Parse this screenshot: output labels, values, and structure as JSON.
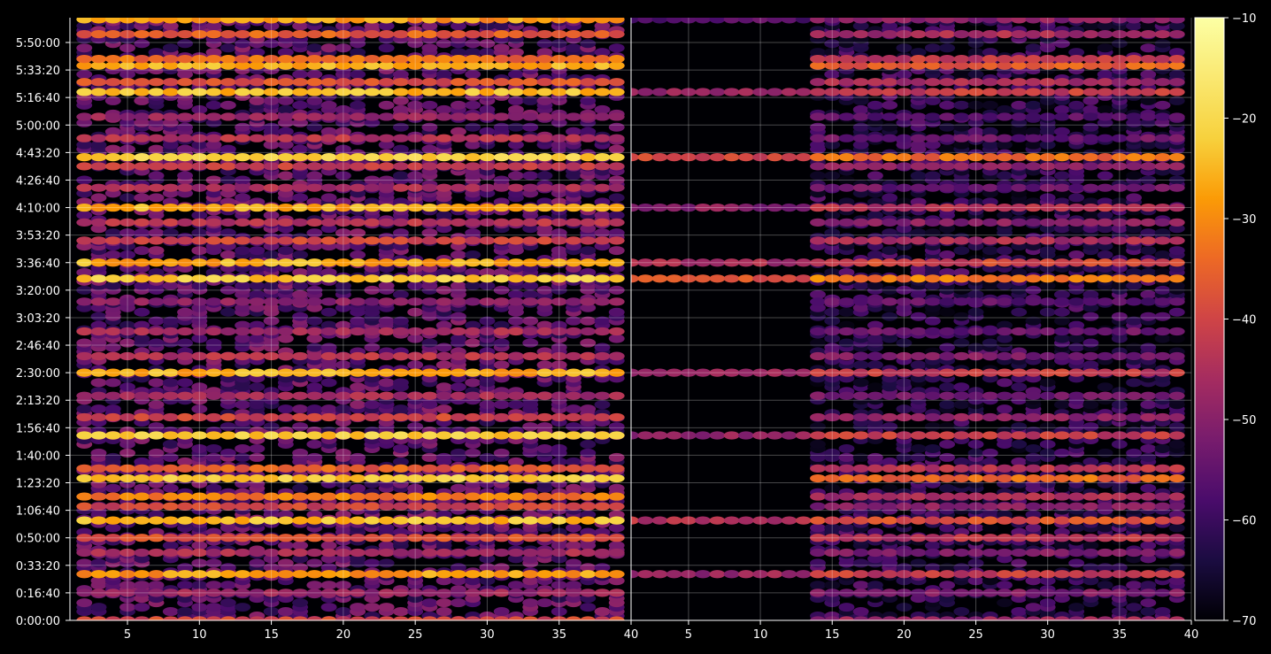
{
  "chart_data": {
    "type": "heatmap",
    "title": "",
    "xlabel": "",
    "ylabel": "",
    "colormap": "inferno",
    "background_color": "#000000",
    "grid": true,
    "color_range": [
      -70,
      -10
    ],
    "colorbar": {
      "placement": "right",
      "ticks": [
        "−70",
        "−60",
        "−50",
        "−40",
        "−30",
        "−20",
        "−10"
      ]
    },
    "y_range_seconds": [
      0,
      21900
    ],
    "y_ticks": [
      "0:00:00",
      "0:16:40",
      "0:33:20",
      "0:50:00",
      "1:06:40",
      "1:23:20",
      "1:40:00",
      "1:56:40",
      "2:13:20",
      "2:30:00",
      "2:46:40",
      "3:03:20",
      "3:20:00",
      "3:36:40",
      "3:53:20",
      "4:10:00",
      "4:26:40",
      "4:43:20",
      "5:00:00",
      "5:16:40",
      "5:33:20",
      "5:50:00"
    ],
    "panels": [
      {
        "name": "left",
        "x_range": [
          1,
          40
        ],
        "x_ticks": [
          "5",
          "10",
          "15",
          "20",
          "25",
          "30",
          "35",
          "40"
        ],
        "x_start": 2,
        "x_end": 39,
        "noise_level": -56,
        "bands": [
          {
            "time": "0:00:00",
            "level": -40
          },
          {
            "time": "0:16:40",
            "level": -48
          },
          {
            "time": "0:28:00",
            "level": -28
          },
          {
            "time": "0:41:00",
            "level": -46
          },
          {
            "time": "0:50:00",
            "level": -38
          },
          {
            "time": "1:00:30",
            "level": -24
          },
          {
            "time": "1:09:00",
            "level": -40
          },
          {
            "time": "1:15:00",
            "level": -32
          },
          {
            "time": "1:26:00",
            "level": -22
          },
          {
            "time": "1:32:00",
            "level": -36
          },
          {
            "time": "1:52:00",
            "level": -22
          },
          {
            "time": "2:03:00",
            "level": -40
          },
          {
            "time": "2:16:00",
            "level": -46
          },
          {
            "time": "2:30:00",
            "level": -26
          },
          {
            "time": "2:40:00",
            "level": -44
          },
          {
            "time": "2:55:00",
            "level": -46
          },
          {
            "time": "3:13:00",
            "level": -50
          },
          {
            "time": "3:27:00",
            "level": -22
          },
          {
            "time": "3:36:40",
            "level": -26
          },
          {
            "time": "3:50:00",
            "level": -40
          },
          {
            "time": "4:01:00",
            "level": -44
          },
          {
            "time": "4:10:00",
            "level": -26
          },
          {
            "time": "4:22:00",
            "level": -46
          },
          {
            "time": "4:35:00",
            "level": -42
          },
          {
            "time": "4:40:30",
            "level": -22
          },
          {
            "time": "4:52:00",
            "level": -44
          },
          {
            "time": "5:05:00",
            "level": -48
          },
          {
            "time": "5:20:00",
            "level": -24
          },
          {
            "time": "5:26:00",
            "level": -38
          },
          {
            "time": "5:36:00",
            "level": -26
          },
          {
            "time": "5:40:00",
            "level": -34
          },
          {
            "time": "5:55:00",
            "level": -36
          },
          {
            "time": "6:04:00",
            "level": -28
          }
        ]
      },
      {
        "name": "right",
        "x_range": [
          1,
          40
        ],
        "x_ticks": [
          "5",
          "10",
          "15",
          "20",
          "25",
          "30",
          "35",
          "40"
        ],
        "x_start": 14,
        "x_end": 39,
        "noise_level": -62,
        "bands": [
          {
            "time": "0:00:00",
            "level": -48
          },
          {
            "time": "0:16:40",
            "level": -52
          },
          {
            "time": "0:28:00",
            "level": -42,
            "from": 1
          },
          {
            "time": "0:41:00",
            "level": -52
          },
          {
            "time": "0:50:00",
            "level": -44
          },
          {
            "time": "1:00:30",
            "level": -38,
            "from": 1
          },
          {
            "time": "1:09:00",
            "level": -50
          },
          {
            "time": "1:15:00",
            "level": -46
          },
          {
            "time": "1:26:00",
            "level": -34
          },
          {
            "time": "1:32:00",
            "level": -44
          },
          {
            "time": "1:52:00",
            "level": -42,
            "from": 1
          },
          {
            "time": "2:03:00",
            "level": -50
          },
          {
            "time": "2:16:00",
            "level": -52
          },
          {
            "time": "2:30:00",
            "level": -42,
            "from": 1
          },
          {
            "time": "2:40:00",
            "level": -52
          },
          {
            "time": "2:55:00",
            "level": -54
          },
          {
            "time": "3:13:00",
            "level": -56
          },
          {
            "time": "3:27:00",
            "level": -32,
            "from": 1
          },
          {
            "time": "3:36:40",
            "level": -40,
            "from": 1
          },
          {
            "time": "3:50:00",
            "level": -46
          },
          {
            "time": "4:01:00",
            "level": -50
          },
          {
            "time": "4:10:00",
            "level": -44,
            "from": 1
          },
          {
            "time": "4:22:00",
            "level": -54
          },
          {
            "time": "4:35:00",
            "level": -50
          },
          {
            "time": "4:40:30",
            "level": -34,
            "from": 1
          },
          {
            "time": "4:52:00",
            "level": -54
          },
          {
            "time": "5:05:00",
            "level": -56
          },
          {
            "time": "5:20:00",
            "level": -42,
            "from": 1
          },
          {
            "time": "5:26:00",
            "level": -46
          },
          {
            "time": "5:36:00",
            "level": -36
          },
          {
            "time": "5:40:00",
            "level": -42
          },
          {
            "time": "5:55:00",
            "level": -46
          },
          {
            "time": "6:04:00",
            "level": -50,
            "from": 1
          }
        ]
      }
    ]
  }
}
